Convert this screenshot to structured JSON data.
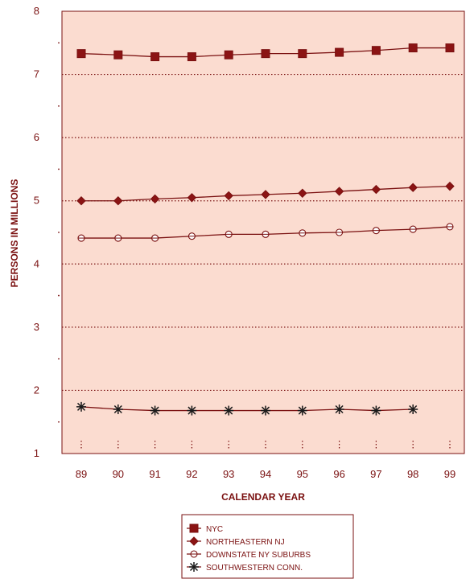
{
  "chart_data": {
    "type": "line",
    "title": "",
    "xlabel": "CALENDAR YEAR",
    "ylabel": "PERSONS IN MILLIONS",
    "x": [
      "89",
      "90",
      "91",
      "92",
      "93",
      "94",
      "95",
      "96",
      "97",
      "98",
      "99"
    ],
    "ylim": [
      1,
      8
    ],
    "yticks": [
      "1",
      "2",
      "3",
      "4",
      "5",
      "6",
      "7",
      "8"
    ],
    "grid": "dotted horizontal lines at each integer",
    "legend_position": "bottom-center",
    "colors": {
      "plot_background": "#fbdcd0",
      "frame": "#7a1010",
      "line": "#7a1010",
      "marker_fill": "#8b1414",
      "text": "#7a1010"
    },
    "series": [
      {
        "name": "NYC",
        "marker": "square",
        "values": [
          7.33,
          7.31,
          7.28,
          7.28,
          7.31,
          7.33,
          7.33,
          7.35,
          7.38,
          7.42,
          7.42
        ]
      },
      {
        "name": "NORTHEASTERN NJ",
        "marker": "diamond",
        "values": [
          5.0,
          5.0,
          5.03,
          5.05,
          5.08,
          5.1,
          5.12,
          5.15,
          5.18,
          5.21,
          5.23
        ]
      },
      {
        "name": "DOWNSTATE NY SUBURBS",
        "marker": "circle",
        "values": [
          4.41,
          4.41,
          4.41,
          4.44,
          4.47,
          4.47,
          4.49,
          4.5,
          4.53,
          4.55,
          4.59
        ]
      },
      {
        "name": "SOUTHWESTERN CONN.",
        "marker": "asterisk",
        "values": [
          1.74,
          1.7,
          1.68,
          1.68,
          1.68,
          1.68,
          1.68,
          1.7,
          1.68,
          1.7,
          null
        ]
      }
    ]
  }
}
